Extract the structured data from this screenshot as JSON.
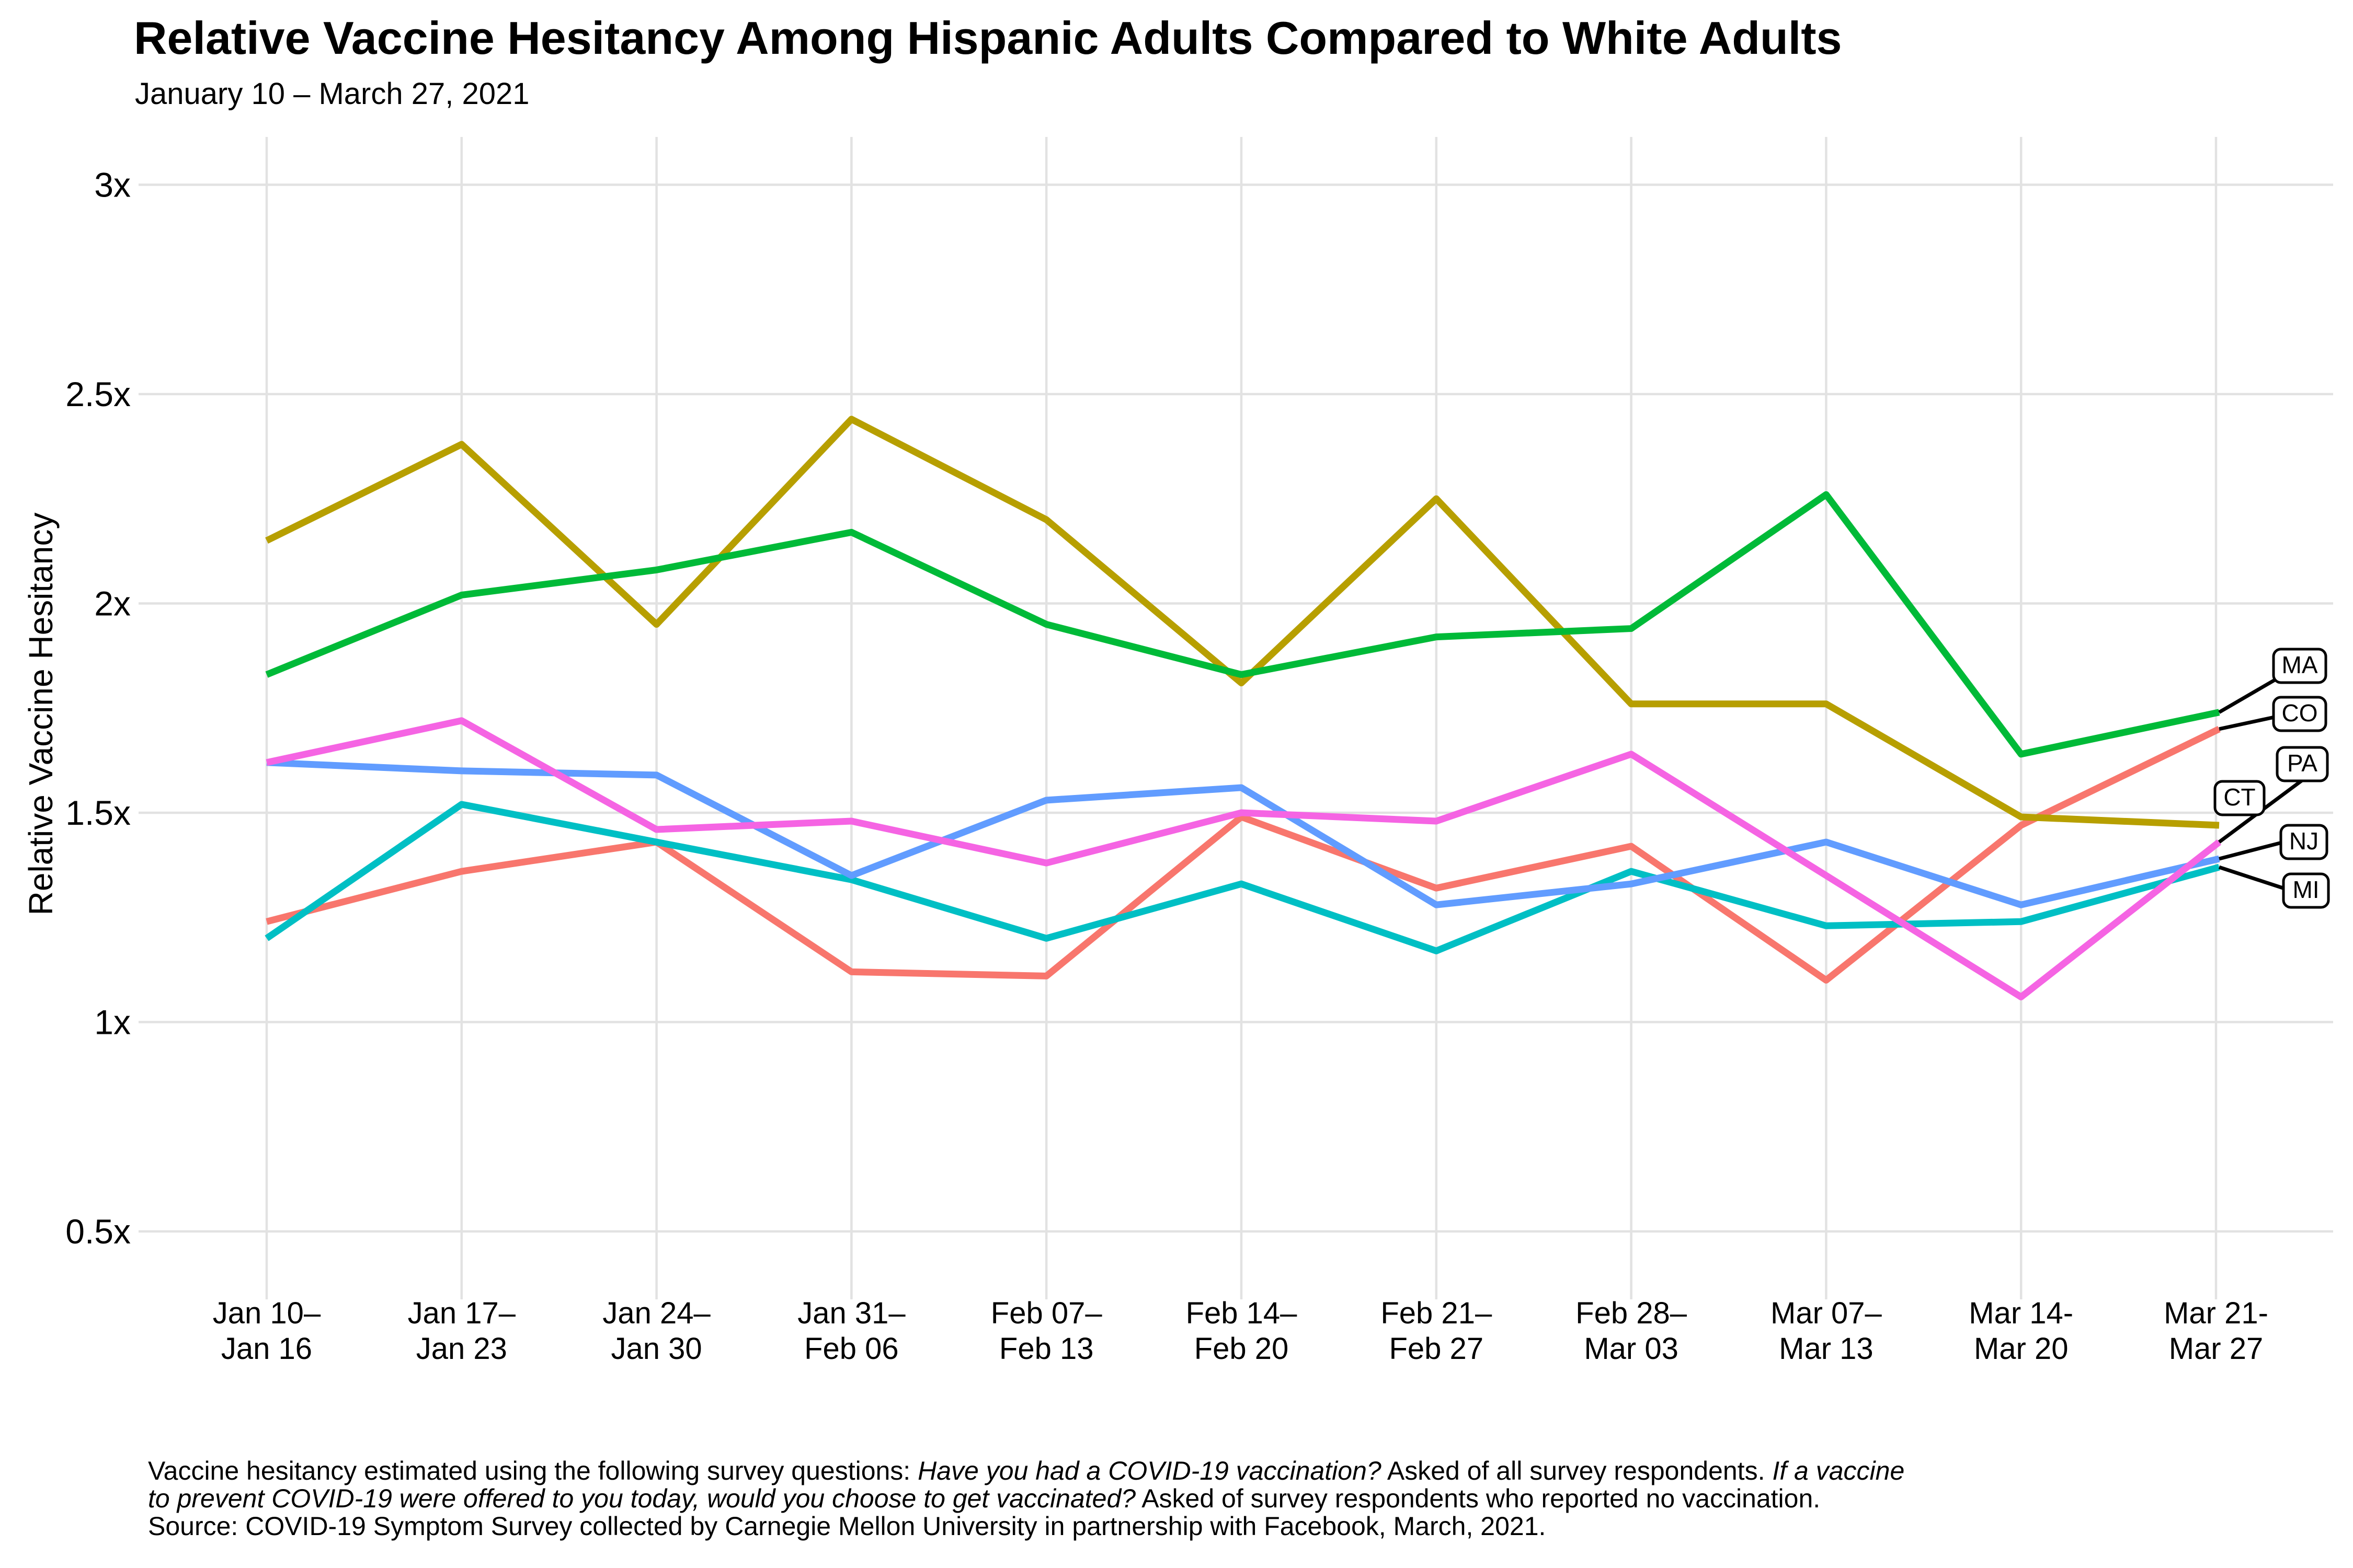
{
  "chart_data": {
    "type": "line",
    "title": "Relative Vaccine Hesitancy Among Hispanic Adults Compared to White Adults",
    "subtitle": "January 10 – March 27, 2021",
    "ylabel": "Relative Vaccine Hesitancy",
    "ylim": [
      0.34,
      3.11
    ],
    "grid": "major-both-light-gray",
    "legend": "direct-labels-at-line-ends",
    "y_ticks": [
      {
        "value": 0.5,
        "label": "0.5x"
      },
      {
        "value": 1.0,
        "label": "1x"
      },
      {
        "value": 1.5,
        "label": "1.5x"
      },
      {
        "value": 2.0,
        "label": "2x"
      },
      {
        "value": 2.5,
        "label": "2.5x"
      },
      {
        "value": 3.0,
        "label": "3x"
      }
    ],
    "categories": [
      [
        "Jan 10–",
        "Jan 16"
      ],
      [
        "Jan 17–",
        "Jan 23"
      ],
      [
        "Jan 24–",
        "Jan 30"
      ],
      [
        "Jan 31–",
        "Feb 06"
      ],
      [
        "Feb 07–",
        "Feb 13"
      ],
      [
        "Feb 14–",
        "Feb 20"
      ],
      [
        "Feb 21–",
        "Feb 27"
      ],
      [
        "Feb 28–",
        "Mar 03"
      ],
      [
        "Mar 07–",
        "Mar 13"
      ],
      [
        "Mar 14-",
        "Mar 20"
      ],
      [
        "Mar 21-",
        "Mar 27"
      ]
    ],
    "series": [
      {
        "name": "CO",
        "color": "#F8766D",
        "values": [
          1.24,
          1.36,
          1.43,
          1.12,
          1.11,
          1.49,
          1.32,
          1.42,
          1.1,
          1.47,
          1.7
        ]
      },
      {
        "name": "CT",
        "color": "#B79F00",
        "values": [
          2.15,
          2.38,
          1.95,
          2.44,
          2.2,
          1.81,
          2.25,
          1.76,
          1.76,
          1.49,
          1.47
        ]
      },
      {
        "name": "MA",
        "color": "#00BA38",
        "values": [
          1.83,
          2.02,
          2.08,
          2.17,
          1.95,
          1.83,
          1.92,
          1.94,
          2.26,
          1.64,
          1.74
        ]
      },
      {
        "name": "MI",
        "color": "#00BFC4",
        "values": [
          1.2,
          1.52,
          1.43,
          1.34,
          1.2,
          1.33,
          1.17,
          1.36,
          1.23,
          1.24,
          1.37
        ]
      },
      {
        "name": "NJ",
        "color": "#619CFF",
        "values": [
          1.62,
          1.6,
          1.59,
          1.35,
          1.53,
          1.56,
          1.28,
          1.33,
          1.43,
          1.28,
          1.39
        ]
      },
      {
        "name": "PA",
        "color": "#F564E3",
        "values": [
          1.62,
          1.72,
          1.46,
          1.48,
          1.38,
          1.5,
          1.48,
          1.64,
          1.35,
          1.06,
          1.43
        ]
      }
    ],
    "colors": {
      "grid": "#E2E2E2",
      "axis_text": "#000000",
      "label_box_border": "#000000",
      "label_box_fill": "#FFFFFF"
    }
  },
  "caption": {
    "l1a": "Vaccine hesitancy estimated using the following survey questions: ",
    "l1b": "Have you had a COVID-19 vaccination?",
    "l1c": " Asked of all survey respondents. ",
    "l1d": "If a vaccine",
    "l2a": "to prevent COVID-19 were offered to you today, would you choose to get vaccinated?",
    "l2b": " Asked of survey respondents who reported no vaccination.",
    "l3": "Source: COVID-19 Symptom Survey collected by Carnegie Mellon University in partnership with Facebook, March, 2021."
  }
}
